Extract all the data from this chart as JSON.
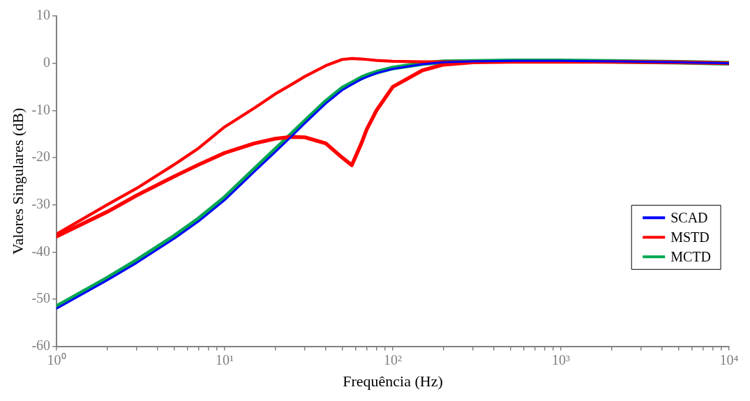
{
  "chart_data": {
    "type": "line",
    "xlabel": "Frequência (Hz)",
    "ylabel": "Valores Singulares (dB)",
    "log": "x",
    "grid": false,
    "legend": "right",
    "marker": "none",
    "line_style": "solid",
    "xlim": [
      1,
      10000
    ],
    "ylim": [
      -60,
      10
    ],
    "xticks": [
      {
        "value": 1,
        "label": "10⁰"
      },
      {
        "value": 2,
        "label": null
      },
      {
        "value": 3,
        "label": null
      },
      {
        "value": 4,
        "label": null
      },
      {
        "value": 5,
        "label": null
      },
      {
        "value": 6,
        "label": null
      },
      {
        "value": 7,
        "label": null
      },
      {
        "value": 8,
        "label": null
      },
      {
        "value": 9,
        "label": null
      },
      {
        "value": 10,
        "label": "10¹"
      },
      {
        "value": 20,
        "label": null
      },
      {
        "value": 30,
        "label": null
      },
      {
        "value": 40,
        "label": null
      },
      {
        "value": 50,
        "label": null
      },
      {
        "value": 60,
        "label": null
      },
      {
        "value": 70,
        "label": null
      },
      {
        "value": 80,
        "label": null
      },
      {
        "value": 90,
        "label": null
      },
      {
        "value": 100,
        "label": "10²"
      },
      {
        "value": 200,
        "label": null
      },
      {
        "value": 300,
        "label": null
      },
      {
        "value": 400,
        "label": null
      },
      {
        "value": 500,
        "label": null
      },
      {
        "value": 600,
        "label": null
      },
      {
        "value": 700,
        "label": null
      },
      {
        "value": 800,
        "label": null
      },
      {
        "value": 900,
        "label": null
      },
      {
        "value": 1000,
        "label": "10³"
      },
      {
        "value": 2000,
        "label": null
      },
      {
        "value": 3000,
        "label": null
      },
      {
        "value": 4000,
        "label": null
      },
      {
        "value": 5000,
        "label": null
      },
      {
        "value": 6000,
        "label": null
      },
      {
        "value": 7000,
        "label": null
      },
      {
        "value": 8000,
        "label": null
      },
      {
        "value": 9000,
        "label": null
      },
      {
        "value": 10000,
        "label": "10⁴"
      }
    ],
    "yticks": [
      -60,
      -50,
      -40,
      -30,
      -20,
      -10,
      0,
      10
    ],
    "x": [
      1,
      2,
      3,
      5,
      7,
      10,
      15,
      20,
      25,
      30,
      40,
      50,
      57,
      65,
      70,
      80,
      100,
      150,
      200,
      300,
      500,
      1000,
      2000,
      5000,
      10000
    ],
    "series": [
      {
        "name": "SCAD",
        "color": "#0000ff",
        "values": [
          -52,
          -46,
          -42.3,
          -37.2,
          -33.5,
          -29,
          -23,
          -18.8,
          -15.5,
          -12.7,
          -8.5,
          -5.7,
          -4.5,
          -3.4,
          -2.9,
          -2.1,
          -1.2,
          -0.2,
          0.2,
          0.4,
          0.5,
          0.5,
          0.4,
          0.2,
          0
        ]
      },
      {
        "name": "MSTD",
        "color": "#ff0000",
        "values": [
          -36.2,
          -30,
          -26.5,
          -21.5,
          -18,
          -13.5,
          -9.5,
          -6.5,
          -4.5,
          -2.8,
          -0.5,
          0.8,
          1,
          0.9,
          0.8,
          0.6,
          0.4,
          0.3,
          0.3,
          0.3,
          0.3,
          0.3,
          0.3,
          0.2,
          0
        ]
      },
      {
        "color": "#ff0000",
        "values": [
          -36.7,
          -31.5,
          -28,
          -24,
          -21.5,
          -19,
          -17,
          -16,
          -15.6,
          -15.7,
          -17,
          -20,
          -21.6,
          -17,
          -14,
          -10,
          -5,
          -1.5,
          -0.3,
          0.2,
          0.3,
          0.3,
          0.3,
          0.2,
          0
        ]
      },
      {
        "name": "MCTD",
        "color": "#00a651",
        "values": [
          -51.6,
          -45.6,
          -41.8,
          -36.7,
          -33,
          -28.5,
          -22.5,
          -18.3,
          -15,
          -12.3,
          -8.1,
          -5.3,
          -4.2,
          -3.1,
          -2.6,
          -1.9,
          -1,
          -0.1,
          0.3,
          0.4,
          0.5,
          0.5,
          0.4,
          0.2,
          0
        ]
      }
    ]
  }
}
